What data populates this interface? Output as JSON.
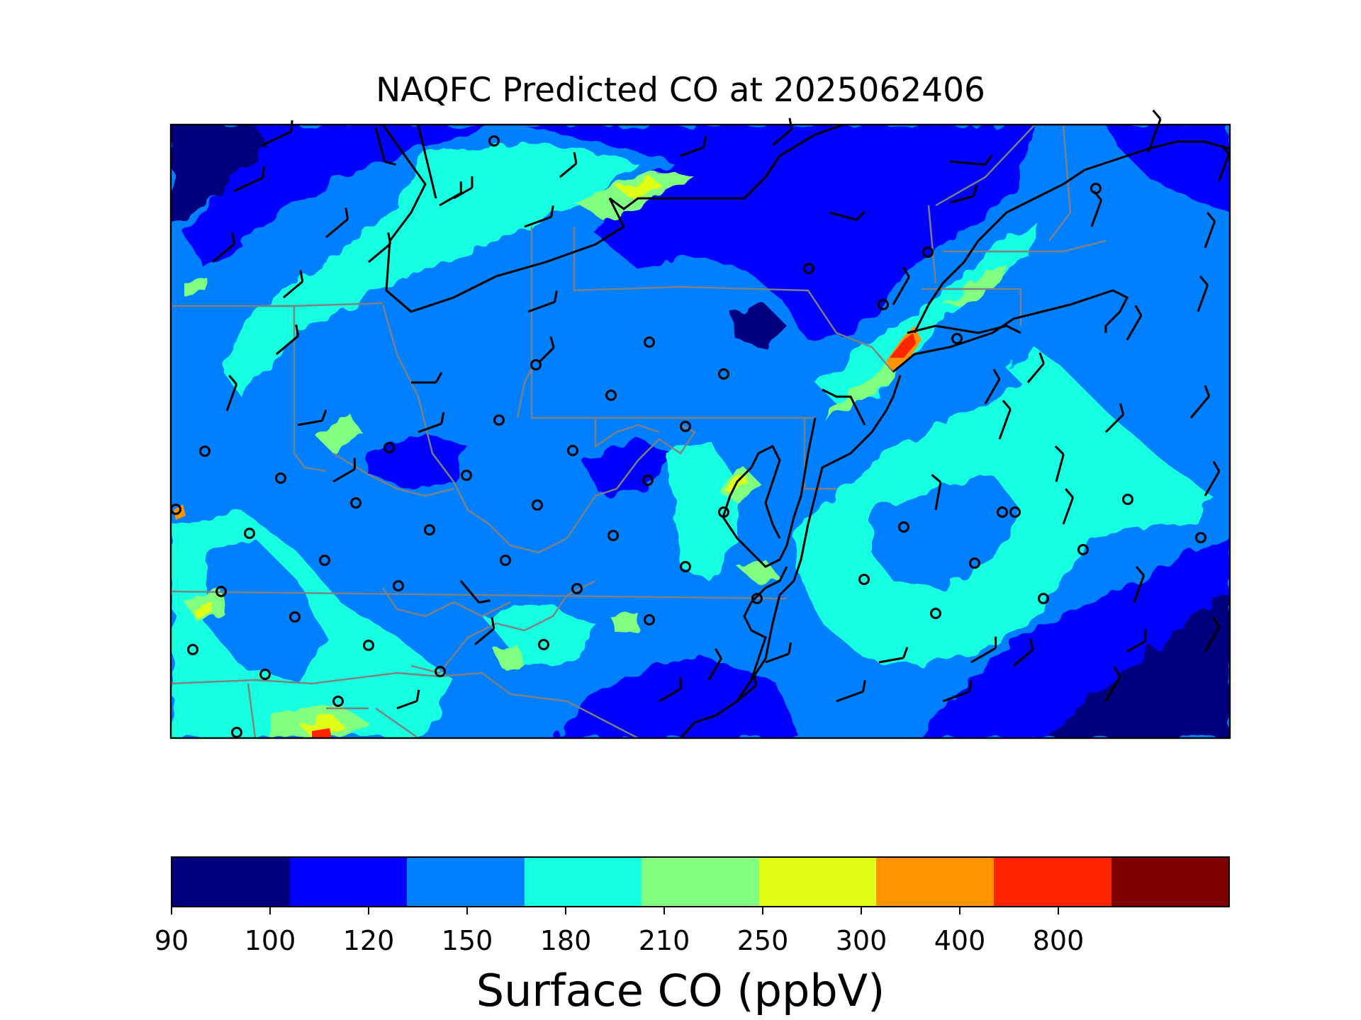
{
  "title": "NAQFC Predicted CO at 2025062406",
  "colorbar": {
    "label": "Surface CO (ppbV)",
    "ticks": [
      "90",
      "100",
      "120",
      "150",
      "180",
      "210",
      "250",
      "300",
      "400",
      "800"
    ],
    "colors": [
      "#00007f",
      "#0000ff",
      "#0080ff",
      "#15ffe0",
      "#80ff80",
      "#e0ff15",
      "#ff9400",
      "#ff2400",
      "#7f0000"
    ]
  },
  "map_colors": {
    "ocean": "#0080ff",
    "coast_line": "#000000",
    "state_line": "#808080"
  }
}
